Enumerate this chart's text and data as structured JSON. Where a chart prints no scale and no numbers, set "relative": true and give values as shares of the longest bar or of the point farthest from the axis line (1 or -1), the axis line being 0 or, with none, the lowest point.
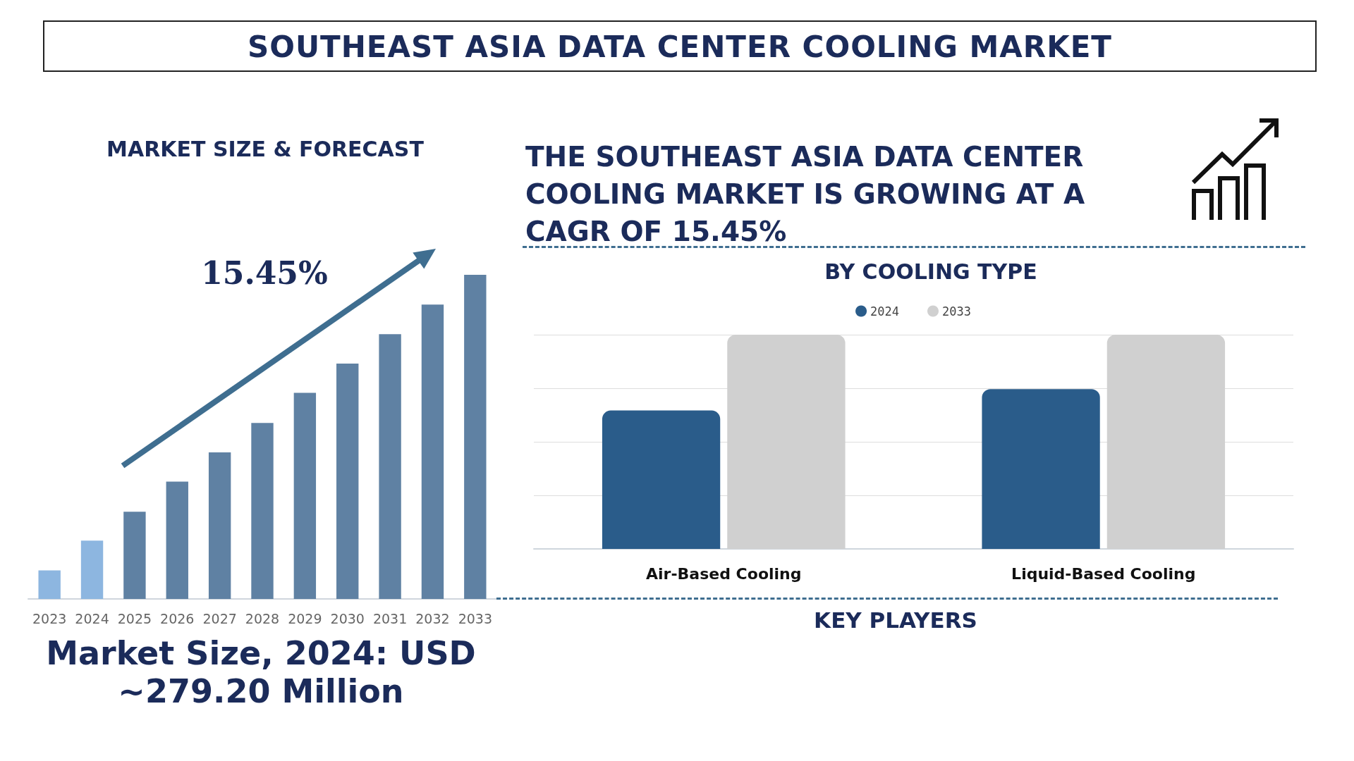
{
  "chart_data": [
    {
      "type": "bar",
      "title": "SOUTHEAST ASIA DATA CENTER COOLING MARKET",
      "subtitle": "MARKET SIZE & FORECAST",
      "relative": true,
      "categories": [
        "2023",
        "2024",
        "2025",
        "2026",
        "2027",
        "2028",
        "2029",
        "2030",
        "2031",
        "2032",
        "2033"
      ],
      "values": [
        0.088,
        0.18,
        0.269,
        0.362,
        0.452,
        0.543,
        0.636,
        0.726,
        0.817,
        0.908,
        1
      ],
      "colors": [
        "#8db6e0",
        "#8db6e0",
        "#5f81a3",
        "#5f81a3",
        "#5f81a3",
        "#5f81a3",
        "#5f81a3",
        "#5f81a3",
        "#5f81a3",
        "#5f81a3",
        "#5f81a3"
      ],
      "annotations": [
        "15.45%",
        "Market Size, 2024: USD ~279.20 Million"
      ]
    },
    {
      "type": "bar",
      "title": "BY COOLING TYPE",
      "relative": true,
      "legend": "top",
      "grid": "y",
      "categories": [
        "Air-Based Cooling",
        "Liquid-Based Cooling"
      ],
      "series": [
        {
          "name": "2024",
          "color": "#2a5c8a",
          "values": [
            0.646,
            0.746
          ]
        },
        {
          "name": "2033",
          "color": "#d0d0d0",
          "values": [
            1,
            1
          ]
        }
      ],
      "annotations": [
        "THE SOUTHEAST ASIA DATA CENTER COOLING MARKET IS GROWING AT A CAGR OF 15.45%",
        "KEY PLAYERS"
      ]
    }
  ]
}
